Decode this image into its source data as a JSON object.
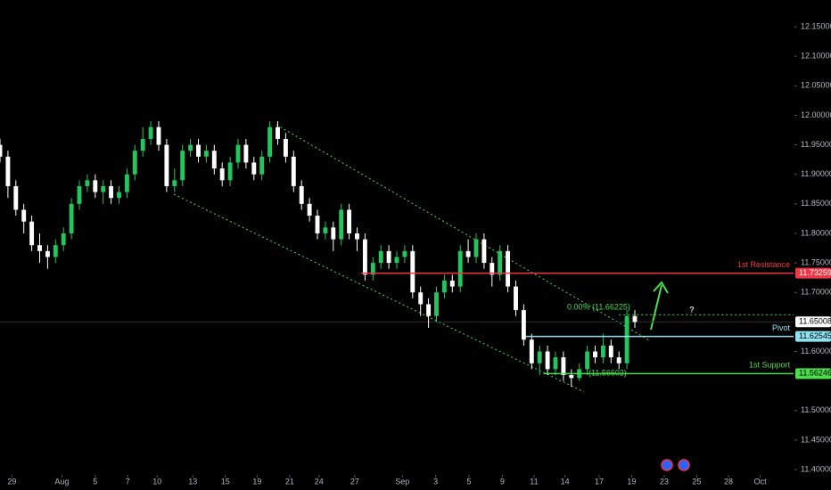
{
  "chart_data": {
    "type": "candlestick",
    "up_color": "#22c55e",
    "down_color": "#ffffff",
    "xlim": [
      0,
      100
    ],
    "ylim": [
      11.3925,
      12.1953
    ],
    "xticks": [
      {
        "value": 1.5,
        "label": "29"
      },
      {
        "value": 7.8,
        "label": "Aug"
      },
      {
        "value": 12,
        "label": "5"
      },
      {
        "value": 16.1,
        "label": "7"
      },
      {
        "value": 19.8,
        "label": "10"
      },
      {
        "value": 24.3,
        "label": "13"
      },
      {
        "value": 28.4,
        "label": "15"
      },
      {
        "value": 32.4,
        "label": "19"
      },
      {
        "value": 36.5,
        "label": "21"
      },
      {
        "value": 40.2,
        "label": "24"
      },
      {
        "value": 44.7,
        "label": "27"
      },
      {
        "value": 50.7,
        "label": "Sep"
      },
      {
        "value": 54.9,
        "label": "3"
      },
      {
        "value": 59.1,
        "label": "5"
      },
      {
        "value": 63.3,
        "label": "9"
      },
      {
        "value": 67.3,
        "label": "11"
      },
      {
        "value": 71.2,
        "label": "14"
      },
      {
        "value": 75.5,
        "label": "17"
      },
      {
        "value": 79.6,
        "label": "19"
      },
      {
        "value": 83.7,
        "label": "23"
      },
      {
        "value": 87.8,
        "label": "25"
      },
      {
        "value": 91.8,
        "label": "28"
      },
      {
        "value": 95.8,
        "label": "Oct"
      }
    ],
    "yticks": [
      {
        "value": 12.15,
        "label": "12.15000"
      },
      {
        "value": 12.1,
        "label": "12.10000"
      },
      {
        "value": 12.05,
        "label": "12.05000"
      },
      {
        "value": 12.0,
        "label": "12.00000"
      },
      {
        "value": 11.95,
        "label": "11.95000"
      },
      {
        "value": 11.9,
        "label": "11.90000"
      },
      {
        "value": 11.85,
        "label": "11.85000"
      },
      {
        "value": 11.8,
        "label": "11.80000"
      },
      {
        "value": 11.75,
        "label": "11.75000"
      },
      {
        "value": 11.7,
        "label": "11.70000"
      },
      {
        "value": 11.6,
        "label": "11.60000"
      },
      {
        "value": 11.5,
        "label": "11.50000"
      },
      {
        "value": 11.45,
        "label": "11.45000"
      },
      {
        "value": 11.4,
        "label": "11.40000"
      }
    ],
    "x": [
      0,
      1,
      2,
      3,
      4,
      5,
      6,
      7,
      8,
      9,
      10,
      11,
      12,
      13,
      14,
      15,
      16,
      17,
      18,
      19,
      20,
      21,
      22,
      23,
      24,
      25,
      26,
      27,
      28,
      29,
      30,
      31,
      32,
      33,
      34,
      35,
      36,
      37,
      38,
      39,
      40,
      41,
      42,
      43,
      44,
      45,
      46,
      47,
      48,
      49,
      50,
      51,
      52,
      53,
      54,
      55,
      56,
      57,
      58,
      59,
      60,
      61,
      62,
      63,
      64,
      65,
      66,
      67,
      68,
      69,
      70,
      71,
      72,
      73,
      74,
      75,
      76,
      77,
      78,
      79,
      80
    ],
    "open": [
      11.95,
      11.93,
      11.88,
      11.84,
      11.82,
      11.78,
      11.77,
      11.76,
      11.78,
      11.8,
      11.85,
      11.88,
      11.89,
      11.87,
      11.88,
      11.86,
      11.87,
      11.9,
      11.94,
      11.96,
      11.98,
      11.95,
      11.88,
      11.89,
      11.94,
      11.95,
      11.93,
      11.94,
      11.91,
      11.89,
      11.92,
      11.95,
      11.92,
      11.9,
      11.93,
      11.98,
      11.96,
      11.93,
      11.88,
      11.85,
      11.83,
      11.8,
      11.81,
      11.79,
      11.84,
      11.8,
      11.79,
      11.73,
      11.75,
      11.77,
      11.75,
      11.76,
      11.77,
      11.7,
      11.68,
      11.66,
      11.7,
      11.72,
      11.71,
      11.77,
      11.76,
      11.79,
      11.75,
      11.73,
      11.77,
      11.71,
      11.67,
      11.62,
      11.58,
      11.6,
      11.57,
      11.59,
      11.56,
      11.555,
      11.57,
      11.6,
      11.59,
      11.61,
      11.59,
      11.58,
      11.66
    ],
    "high": [
      11.96,
      11.94,
      11.89,
      11.85,
      11.83,
      11.8,
      11.78,
      11.79,
      11.81,
      11.86,
      11.89,
      11.9,
      11.9,
      11.89,
      11.89,
      11.88,
      11.91,
      11.95,
      11.98,
      11.99,
      11.99,
      11.96,
      11.91,
      11.95,
      11.96,
      11.96,
      11.95,
      11.95,
      11.92,
      11.93,
      11.96,
      11.96,
      11.93,
      11.94,
      11.99,
      11.99,
      11.97,
      11.94,
      11.89,
      11.86,
      11.84,
      11.82,
      11.82,
      11.85,
      11.85,
      11.81,
      11.8,
      11.76,
      11.78,
      11.78,
      11.77,
      11.78,
      11.78,
      11.71,
      11.69,
      11.71,
      11.73,
      11.73,
      11.78,
      11.79,
      11.8,
      11.8,
      11.76,
      11.78,
      11.78,
      11.72,
      11.68,
      11.63,
      11.61,
      11.61,
      11.6,
      11.6,
      11.57,
      11.58,
      11.61,
      11.61,
      11.63,
      11.62,
      11.6,
      11.67,
      11.67
    ],
    "low": [
      11.92,
      11.86,
      11.83,
      11.8,
      11.77,
      11.75,
      11.74,
      11.75,
      11.77,
      11.79,
      11.84,
      11.87,
      11.86,
      11.85,
      11.85,
      11.85,
      11.86,
      11.89,
      11.93,
      11.95,
      11.94,
      11.87,
      11.87,
      11.88,
      11.93,
      11.92,
      11.92,
      11.9,
      11.88,
      11.88,
      11.91,
      11.91,
      11.89,
      11.89,
      11.92,
      11.95,
      11.92,
      11.87,
      11.84,
      11.82,
      11.79,
      11.79,
      11.77,
      11.78,
      11.79,
      11.77,
      11.72,
      11.72,
      11.74,
      11.74,
      11.74,
      11.75,
      11.69,
      11.66,
      11.64,
      11.65,
      11.69,
      11.7,
      11.7,
      11.75,
      11.75,
      11.74,
      11.71,
      11.72,
      11.7,
      11.66,
      11.61,
      11.57,
      11.56,
      11.56,
      11.56,
      11.55,
      11.54,
      11.55,
      11.56,
      11.58,
      11.58,
      11.58,
      11.57,
      11.57,
      11.64
    ],
    "close": [
      11.93,
      11.88,
      11.84,
      11.82,
      11.78,
      11.77,
      11.76,
      11.78,
      11.8,
      11.85,
      11.88,
      11.89,
      11.87,
      11.88,
      11.86,
      11.87,
      11.9,
      11.94,
      11.96,
      11.98,
      11.95,
      11.88,
      11.89,
      11.94,
      11.95,
      11.93,
      11.94,
      11.91,
      11.89,
      11.92,
      11.95,
      11.92,
      11.9,
      11.93,
      11.98,
      11.96,
      11.93,
      11.88,
      11.85,
      11.83,
      11.8,
      11.81,
      11.79,
      11.84,
      11.8,
      11.79,
      11.73,
      11.75,
      11.77,
      11.75,
      11.76,
      11.77,
      11.7,
      11.68,
      11.66,
      11.7,
      11.72,
      11.71,
      11.77,
      11.76,
      11.79,
      11.75,
      11.73,
      11.77,
      11.71,
      11.67,
      11.62,
      11.58,
      11.6,
      11.57,
      11.59,
      11.56,
      11.555,
      11.57,
      11.6,
      11.59,
      11.61,
      11.59,
      11.58,
      11.66,
      11.65
    ],
    "last_price": 11.65008,
    "levels": [
      {
        "name": "1st Resistance",
        "value": 11.73259,
        "color": "#f23645",
        "from_x": 45.5
      },
      {
        "name": "Pivot",
        "value": 11.62545,
        "color": "#8fe3f0",
        "from_x": 66.3
      },
      {
        "name": "1st Support",
        "value": 11.56246,
        "color": "#4ade4a",
        "from_x": 68.5
      }
    ],
    "fib_label": "0.00% (11.66225)",
    "fib_value": 11.66225,
    "fib_low_label": "(11.56602)",
    "annotation": "?"
  }
}
